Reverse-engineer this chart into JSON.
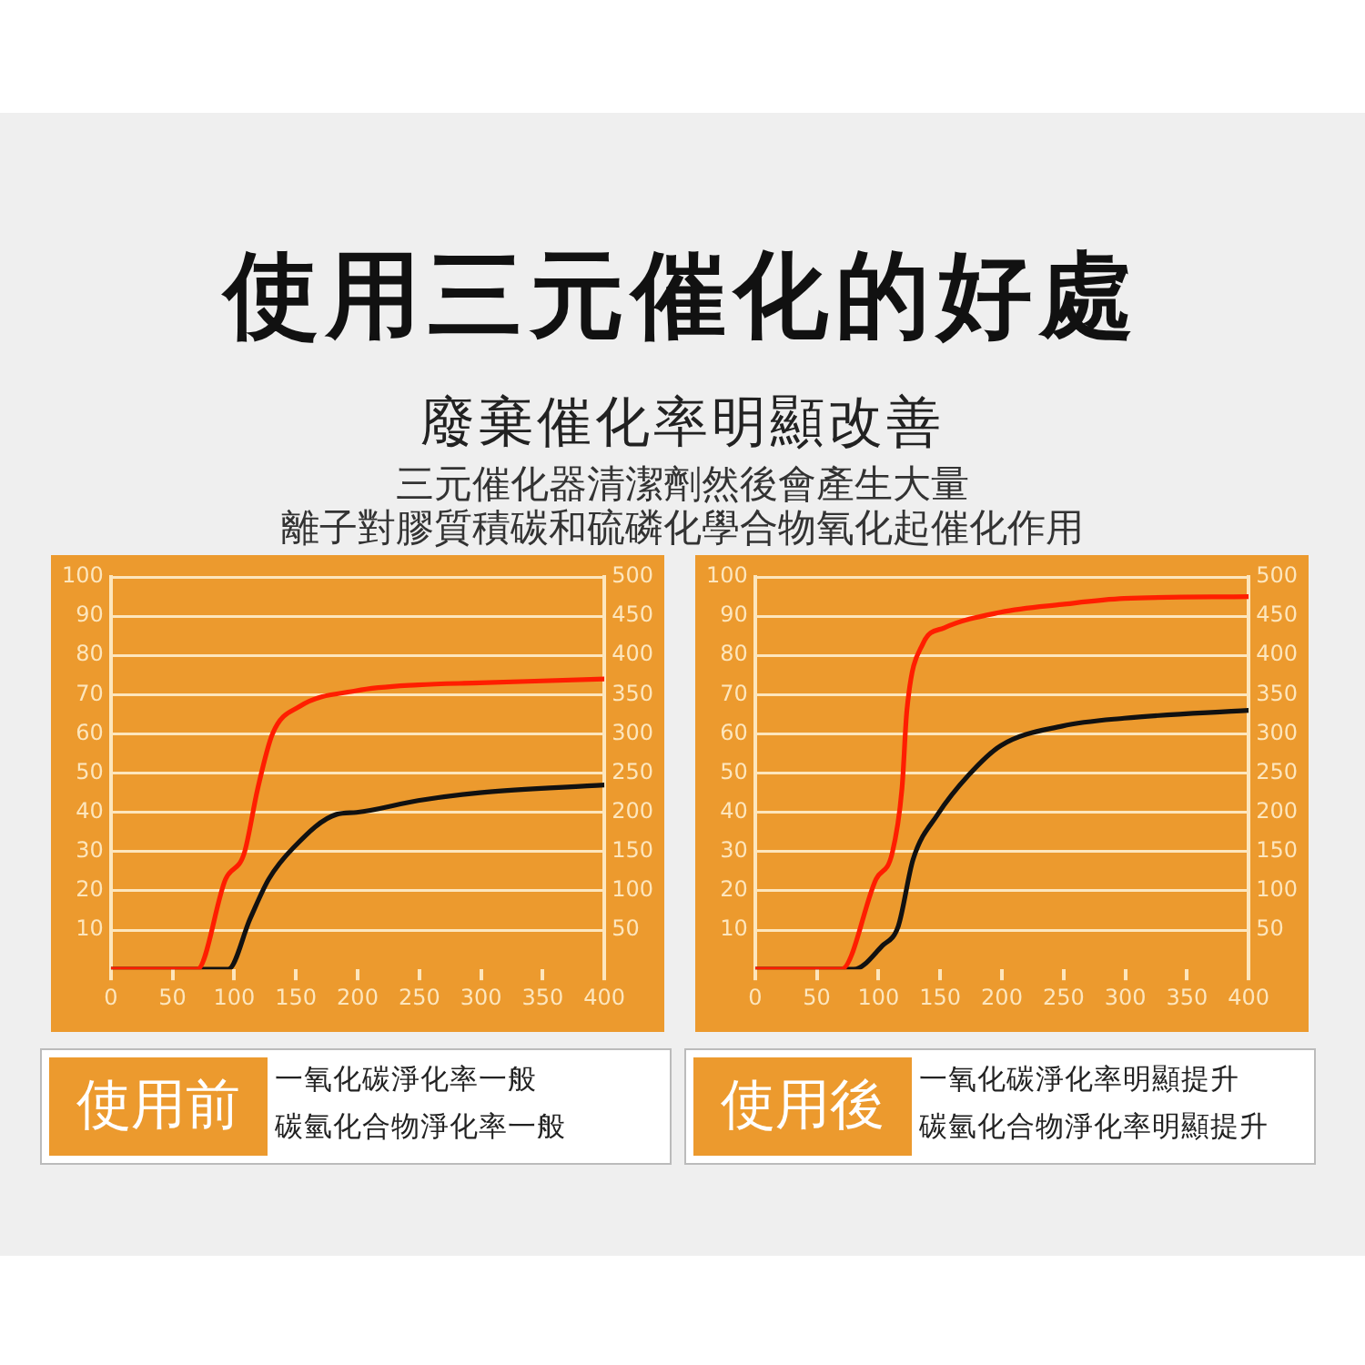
{
  "chart_data": [
    {
      "type": "line",
      "title": "使用三元催化的好處",
      "subtitle": "廢棄催化率明顯改善",
      "annotations": [
        "三元催化器清潔劑然後會產生大量",
        "離子對膠質積碳和硫磷化學合物氧化起催化作用",
        "使用前",
        "一氧化碳淨化率一般",
        "碳氫化合物淨化率一般"
      ],
      "series": [
        {
          "color": "#ff1e00",
          "x": [
            0,
            70,
            93,
            108,
            119,
            131,
            153,
            199,
            249,
            299,
            400
          ],
          "values": [
            0,
            0,
            23,
            29.5,
            46,
            60,
            67,
            71,
            72.5,
            73,
            74
          ]
        },
        {
          "color": "#111111",
          "x": [
            0,
            95,
            113,
            128,
            148,
            183,
            199,
            249,
            299,
            400
          ],
          "values": [
            0,
            0,
            13,
            23,
            31,
            39.5,
            40,
            43,
            45,
            47
          ]
        }
      ],
      "xlim": [
        0,
        400
      ],
      "xticks": [
        0,
        50,
        100,
        150,
        200,
        250,
        300,
        350,
        400
      ],
      "ylim": [
        0,
        100
      ],
      "yticks": [
        10,
        20,
        30,
        40,
        50,
        60,
        70,
        80,
        90,
        100
      ],
      "y2lim": [
        0,
        500
      ],
      "y2ticks": [
        50,
        100,
        150,
        200,
        250,
        300,
        350,
        400,
        450,
        500
      ],
      "grid": "y",
      "legend": false,
      "marker": "none",
      "line_style": "solid"
    },
    {
      "type": "line",
      "annotations": [
        "使用後",
        "一氧化碳淨化率明顯提升",
        "碳氫化合物淨化率明顯提升"
      ],
      "series": [
        {
          "color": "#ff1e00",
          "x": [
            0,
            70,
            98,
            111,
            119,
            123,
            136,
            153,
            199,
            249,
            299,
            400
          ],
          "values": [
            0,
            0,
            23,
            29.5,
            46,
            66,
            83,
            87,
            91,
            93,
            94.5,
            95
          ]
        },
        {
          "color": "#111111",
          "x": [
            0,
            80,
            103,
            116,
            128,
            148,
            173,
            199,
            249,
            299,
            400
          ],
          "values": [
            0,
            0,
            6,
            11,
            28,
            39.5,
            49.5,
            57,
            62,
            64,
            66
          ]
        }
      ],
      "xlim": [
        0,
        400
      ],
      "xticks": [
        0,
        50,
        100,
        150,
        200,
        250,
        300,
        350,
        400
      ],
      "ylim": [
        0,
        100
      ],
      "yticks": [
        10,
        20,
        30,
        40,
        50,
        60,
        70,
        80,
        90,
        100
      ],
      "y2lim": [
        0,
        500
      ],
      "y2ticks": [
        50,
        100,
        150,
        200,
        250,
        300,
        350,
        400,
        450,
        500
      ],
      "grid": "y",
      "legend": false,
      "marker": "none",
      "line_style": "solid"
    }
  ]
}
